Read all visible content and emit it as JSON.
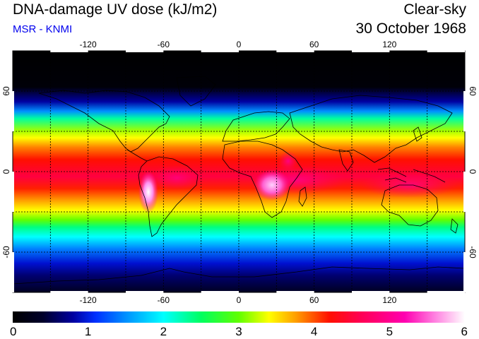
{
  "header": {
    "title": "DNA-damage UV dose (kJ/m2)",
    "credit": "MSR - KNMI",
    "condition": "Clear-sky",
    "date": "30 October 1968"
  },
  "colors": {
    "credit_text": "#0000ee",
    "graticule": "#000000",
    "coastline": "#000000"
  },
  "map": {
    "projection": "equirectangular",
    "lon_range": [
      -180,
      180
    ],
    "lat_range": [
      -90,
      90
    ],
    "lon_ticks": [
      {
        "value": -120,
        "label": "-120"
      },
      {
        "value": -60,
        "label": "-60"
      },
      {
        "value": 0,
        "label": "0"
      },
      {
        "value": 60,
        "label": "60"
      },
      {
        "value": 120,
        "label": "120"
      }
    ],
    "lat_ticks": [
      {
        "value": 60,
        "label": "60"
      },
      {
        "value": 0,
        "label": "0"
      },
      {
        "value": -60,
        "label": "-60"
      }
    ],
    "graticule_lons": [
      -150,
      -120,
      -90,
      -60,
      -30,
      0,
      30,
      60,
      90,
      120,
      150
    ],
    "graticule_lats": [
      -60,
      -30,
      0,
      30,
      60
    ],
    "field_note": "UV dose peaks near the equator and southern subtropics, ~5-6 over the Andes and East Africa; near 0 poleward of 60N."
  },
  "colorbar": {
    "min": 0,
    "max": 6,
    "tick_labels": [
      "0",
      "1",
      "2",
      "3",
      "4",
      "5",
      "6"
    ],
    "stops": [
      {
        "value": 0.0,
        "color": "#000000"
      },
      {
        "value": 0.4,
        "color": "#00002a"
      },
      {
        "value": 0.8,
        "color": "#0000a0"
      },
      {
        "value": 1.1,
        "color": "#0030ff"
      },
      {
        "value": 1.5,
        "color": "#0090ff"
      },
      {
        "value": 2.0,
        "color": "#00ffff"
      },
      {
        "value": 2.5,
        "color": "#00ff60"
      },
      {
        "value": 3.0,
        "color": "#60ff00"
      },
      {
        "value": 3.4,
        "color": "#ffff00"
      },
      {
        "value": 3.75,
        "color": "#ffa000"
      },
      {
        "value": 4.2,
        "color": "#ff1000"
      },
      {
        "value": 4.6,
        "color": "#ff0050"
      },
      {
        "value": 5.2,
        "color": "#ff00b0"
      },
      {
        "value": 5.6,
        "color": "#ff80e0"
      },
      {
        "value": 6.0,
        "color": "#ffffff"
      }
    ]
  }
}
